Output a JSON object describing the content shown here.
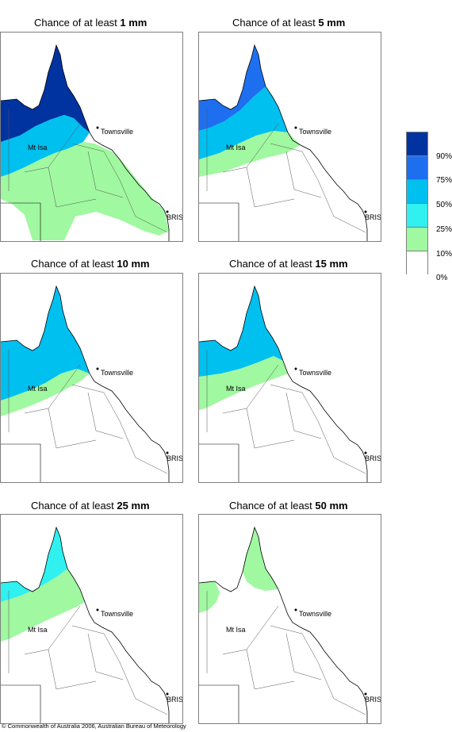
{
  "panels": [
    {
      "title_prefix": "Chance of at least ",
      "threshold": "1 mm",
      "level": "high"
    },
    {
      "title_prefix": "Chance of at least ",
      "threshold": "5 mm",
      "level": "mid-high"
    },
    {
      "title_prefix": "Chance of at least ",
      "threshold": "10 mm",
      "level": "mid"
    },
    {
      "title_prefix": "Chance of at least ",
      "threshold": "15 mm",
      "level": "mid-low"
    },
    {
      "title_prefix": "Chance of at least ",
      "threshold": "25 mm",
      "level": "low"
    },
    {
      "title_prefix": "Chance of at least ",
      "threshold": "50 mm",
      "level": "very-low"
    }
  ],
  "places": {
    "townsville": "Townsville",
    "mt_isa": "Mt Isa",
    "brisbane": "BRIS"
  },
  "legend": {
    "labels": [
      "90%",
      "75%",
      "50%",
      "25%",
      "10%",
      "0%"
    ],
    "colors": [
      "#0033a0",
      "#1e6ff0",
      "#00c0f0",
      "#30f0f0",
      "#a0f8a0",
      "#ffffff"
    ]
  },
  "footer": {
    "copyright": "© Commonwealth of Australia 2006, Australian Bureau of Meteorology"
  }
}
